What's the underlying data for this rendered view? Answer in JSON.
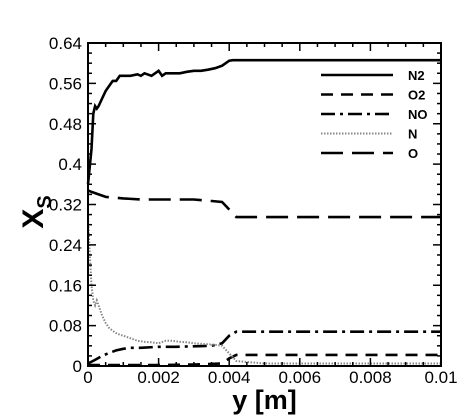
{
  "chart_data": {
    "type": "line",
    "xlabel": "y [m]",
    "ylabel": "X",
    "ylabel_subscript": "S",
    "xlim": [
      0,
      0.01
    ],
    "ylim": [
      0,
      0.64
    ],
    "xticks": [
      0,
      0.002,
      0.004,
      0.006,
      0.008,
      0.01
    ],
    "xtick_labels": [
      "0",
      "0.002",
      "0.004",
      "0.006",
      "0.008",
      "0.01"
    ],
    "yticks": [
      0,
      0.08,
      0.16,
      0.24,
      0.32,
      0.4,
      0.48,
      0.56,
      0.64
    ],
    "ytick_labels": [
      "0",
      "0.08",
      "0.16",
      "0.24",
      "0.32",
      "0.4",
      "0.48",
      "0.56",
      "0.64"
    ],
    "grid": false,
    "legend_position": "top-right",
    "series": [
      {
        "name": "N2",
        "style": "solid",
        "color": "#000000",
        "x": [
          0,
          0.0001,
          0.00015,
          0.0002,
          0.00025,
          0.0003,
          0.0004,
          0.0005,
          0.0006,
          0.0007,
          0.0008,
          0.0009,
          0.001,
          0.0012,
          0.0014,
          0.0015,
          0.0016,
          0.0018,
          0.0019,
          0.002,
          0.0021,
          0.0022,
          0.0023,
          0.0024,
          0.0026,
          0.0028,
          0.003,
          0.0032,
          0.0034,
          0.0036,
          0.0038,
          0.0039,
          0.004,
          0.0041,
          0.0042,
          0.005,
          0.006,
          0.008,
          0.01
        ],
        "y": [
          0.36,
          0.43,
          0.5,
          0.515,
          0.51,
          0.515,
          0.53,
          0.545,
          0.555,
          0.565,
          0.565,
          0.575,
          0.575,
          0.575,
          0.578,
          0.575,
          0.58,
          0.575,
          0.58,
          0.585,
          0.575,
          0.58,
          0.58,
          0.58,
          0.58,
          0.583,
          0.585,
          0.585,
          0.587,
          0.59,
          0.595,
          0.6,
          0.605,
          0.606,
          0.606,
          0.606,
          0.606,
          0.606,
          0.606
        ]
      },
      {
        "name": "O2",
        "style": "dashed",
        "color": "#000000",
        "x": [
          0,
          0.0005,
          0.001,
          0.002,
          0.003,
          0.0038,
          0.004,
          0.0042,
          0.005,
          0.006,
          0.008,
          0.01
        ],
        "y": [
          0.002,
          0.002,
          0.002,
          0.002,
          0.003,
          0.005,
          0.015,
          0.022,
          0.022,
          0.022,
          0.022,
          0.022
        ]
      },
      {
        "name": "NO",
        "style": "dashdot",
        "color": "#000000",
        "x": [
          0,
          0.0002,
          0.0004,
          0.0006,
          0.0008,
          0.001,
          0.0012,
          0.0015,
          0.002,
          0.0025,
          0.003,
          0.0035,
          0.0038,
          0.004,
          0.0042,
          0.005,
          0.006,
          0.008,
          0.01
        ],
        "y": [
          0.005,
          0.012,
          0.02,
          0.026,
          0.031,
          0.034,
          0.036,
          0.036,
          0.038,
          0.038,
          0.039,
          0.04,
          0.045,
          0.06,
          0.068,
          0.068,
          0.068,
          0.068,
          0.068
        ]
      },
      {
        "name": "N",
        "style": "dotted",
        "color": "#888888",
        "x": [
          0,
          5e-05,
          0.0001,
          0.00015,
          0.0002,
          0.00025,
          0.0003,
          0.0004,
          0.0005,
          0.0006,
          0.0007,
          0.0008,
          0.0009,
          0.001,
          0.0012,
          0.0014,
          0.0016,
          0.0018,
          0.002,
          0.0022,
          0.0024,
          0.0026,
          0.0028,
          0.003,
          0.0032,
          0.0034,
          0.0036,
          0.0038,
          0.004,
          0.0042,
          0.005,
          0.006,
          0.008,
          0.01
        ],
        "y": [
          0.3,
          0.22,
          0.16,
          0.13,
          0.12,
          0.13,
          0.12,
          0.1,
          0.085,
          0.075,
          0.07,
          0.065,
          0.062,
          0.06,
          0.055,
          0.05,
          0.048,
          0.047,
          0.045,
          0.05,
          0.05,
          0.048,
          0.047,
          0.045,
          0.044,
          0.043,
          0.042,
          0.04,
          0.025,
          0.01,
          0.005,
          0.005,
          0.005,
          0.005
        ]
      },
      {
        "name": "O",
        "style": "longdash",
        "color": "#000000",
        "x": [
          0,
          0.0001,
          0.0003,
          0.0005,
          0.001,
          0.0015,
          0.002,
          0.0025,
          0.003,
          0.0035,
          0.0038,
          0.004,
          0.0042,
          0.005,
          0.006,
          0.008,
          0.01
        ],
        "y": [
          0.348,
          0.345,
          0.34,
          0.335,
          0.332,
          0.33,
          0.33,
          0.33,
          0.33,
          0.327,
          0.325,
          0.31,
          0.295,
          0.295,
          0.295,
          0.295,
          0.295
        ]
      }
    ]
  }
}
